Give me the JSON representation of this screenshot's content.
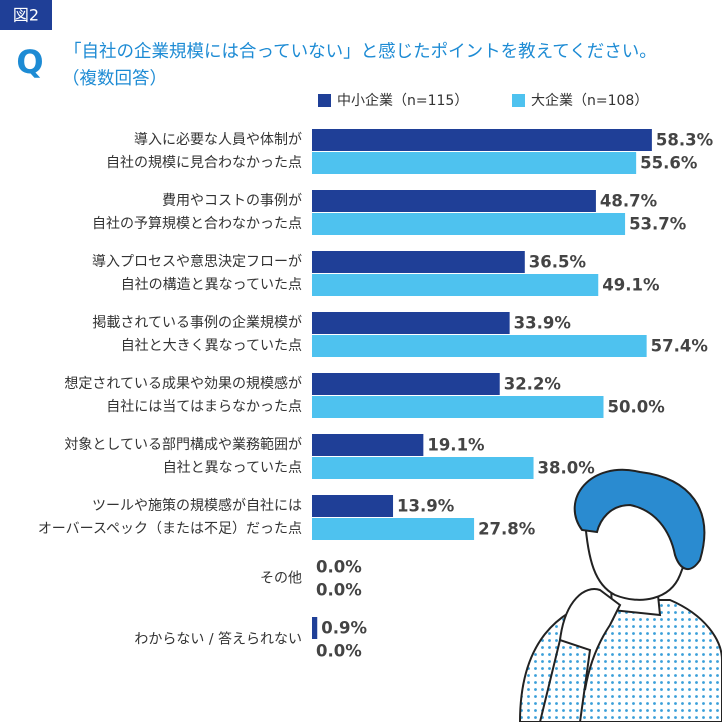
{
  "chart_data": {
    "type": "bar",
    "orientation": "horizontal",
    "figure_label": "図2",
    "question_mark": "Q",
    "title": "「自社の企業規模には合っていない」と感じたポイントを教えてください。",
    "subtitle": "（複数回答）",
    "categories": [
      [
        "導入に必要な人員や体制が",
        "自社の規模に見合わなかった点"
      ],
      [
        "費用やコストの事例が",
        "自社の予算規模と合わなかった点"
      ],
      [
        "導入プロセスや意思決定フローが",
        "自社の構造と異なっていた点"
      ],
      [
        "掲載されている事例の企業規模が",
        "自社と大きく異なっていた点"
      ],
      [
        "想定されている成果や効果の規模感が",
        "自社には当てはまらなかった点"
      ],
      [
        "対象としている部門構成や業務範囲が",
        "自社と異なっていた点"
      ],
      [
        "ツールや施策の規模感が自社には",
        "オーバースペック（または不足）だった点"
      ],
      [
        "その他"
      ],
      [
        "わからない / 答えられない"
      ]
    ],
    "series": [
      {
        "name": "中小企業（n=115）",
        "color": "#1f3f97",
        "values": [
          58.3,
          48.7,
          36.5,
          33.9,
          32.2,
          19.1,
          13.9,
          0.0,
          0.9
        ],
        "value_labels": [
          "58.3%",
          "48.7%",
          "36.5%",
          "33.9%",
          "32.2%",
          "19.1%",
          "13.9%",
          "0.0%",
          "0.9%"
        ]
      },
      {
        "name": "大企業（n=108）",
        "color": "#4ec2ef",
        "values": [
          55.6,
          53.7,
          49.1,
          57.4,
          50.0,
          38.0,
          27.8,
          0.0,
          0.0
        ],
        "value_labels": [
          "55.6%",
          "53.7%",
          "49.1%",
          "57.4%",
          "50.0%",
          "38.0%",
          "27.8%",
          "0.0%",
          "0.0%"
        ]
      }
    ]
  }
}
